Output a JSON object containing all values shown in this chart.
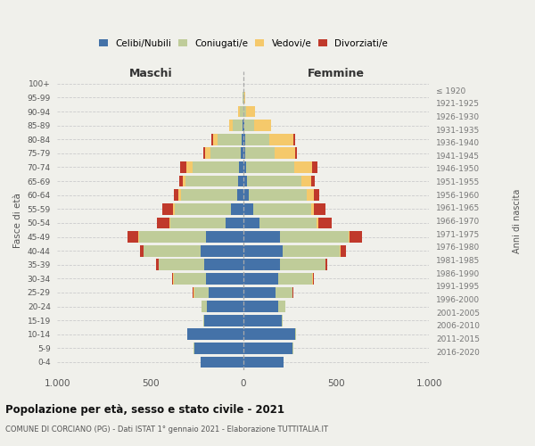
{
  "age_groups": [
    "0-4",
    "5-9",
    "10-14",
    "15-19",
    "20-24",
    "25-29",
    "30-34",
    "35-39",
    "40-44",
    "45-49",
    "50-54",
    "55-59",
    "60-64",
    "65-69",
    "70-74",
    "75-79",
    "80-84",
    "85-89",
    "90-94",
    "95-99",
    "100+"
  ],
  "birth_years": [
    "2016-2020",
    "2011-2015",
    "2006-2010",
    "2001-2005",
    "1996-2000",
    "1991-1995",
    "1986-1990",
    "1981-1985",
    "1976-1980",
    "1971-1975",
    "1966-1970",
    "1961-1965",
    "1956-1960",
    "1951-1955",
    "1946-1950",
    "1941-1945",
    "1936-1940",
    "1931-1935",
    "1926-1930",
    "1921-1925",
    "≤ 1920"
  ],
  "maschi": {
    "celibi": [
      230,
      265,
      300,
      210,
      195,
      185,
      200,
      210,
      230,
      200,
      95,
      65,
      35,
      30,
      25,
      15,
      10,
      5,
      2,
      0,
      0
    ],
    "coniugati": [
      0,
      2,
      3,
      5,
      30,
      80,
      175,
      245,
      305,
      360,
      300,
      305,
      300,
      280,
      250,
      160,
      130,
      50,
      15,
      3,
      0
    ],
    "vedovi": [
      0,
      0,
      0,
      0,
      0,
      2,
      2,
      2,
      3,
      5,
      5,
      10,
      15,
      15,
      30,
      30,
      25,
      20,
      10,
      2,
      0
    ],
    "divorziati": [
      0,
      0,
      0,
      0,
      2,
      5,
      8,
      15,
      20,
      60,
      65,
      55,
      25,
      20,
      35,
      10,
      8,
      0,
      0,
      0,
      0
    ]
  },
  "femmine": {
    "nubili": [
      215,
      265,
      280,
      205,
      185,
      175,
      185,
      195,
      210,
      195,
      85,
      55,
      30,
      20,
      15,
      10,
      8,
      5,
      2,
      0,
      0
    ],
    "coniugate": [
      0,
      2,
      3,
      8,
      40,
      90,
      185,
      245,
      310,
      370,
      310,
      310,
      310,
      290,
      260,
      160,
      130,
      55,
      15,
      5,
      0
    ],
    "vedove": [
      0,
      0,
      0,
      0,
      0,
      0,
      2,
      2,
      3,
      5,
      8,
      15,
      40,
      55,
      95,
      110,
      130,
      90,
      45,
      5,
      0
    ],
    "divorziate": [
      0,
      0,
      0,
      0,
      2,
      5,
      8,
      10,
      30,
      70,
      70,
      60,
      30,
      20,
      30,
      10,
      10,
      0,
      0,
      0,
      0
    ]
  },
  "colors": {
    "celibi_nubili": "#4472a8",
    "coniugati_e": "#bfcc99",
    "vedovi_e": "#f5c96b",
    "divorziati_e": "#c0392b"
  },
  "xlim": 1000,
  "title": "Popolazione per età, sesso e stato civile - 2021",
  "subtitle": "COMUNE DI CORCIANO (PG) - Dati ISTAT 1° gennaio 2021 - Elaborazione TUTTITALIA.IT",
  "xlabel_left": "Maschi",
  "xlabel_right": "Femmine",
  "ylabel_left": "Fasce di età",
  "ylabel_right": "Anni di nascita",
  "bg_color": "#f0f0eb",
  "grid_color": "#cccccc"
}
